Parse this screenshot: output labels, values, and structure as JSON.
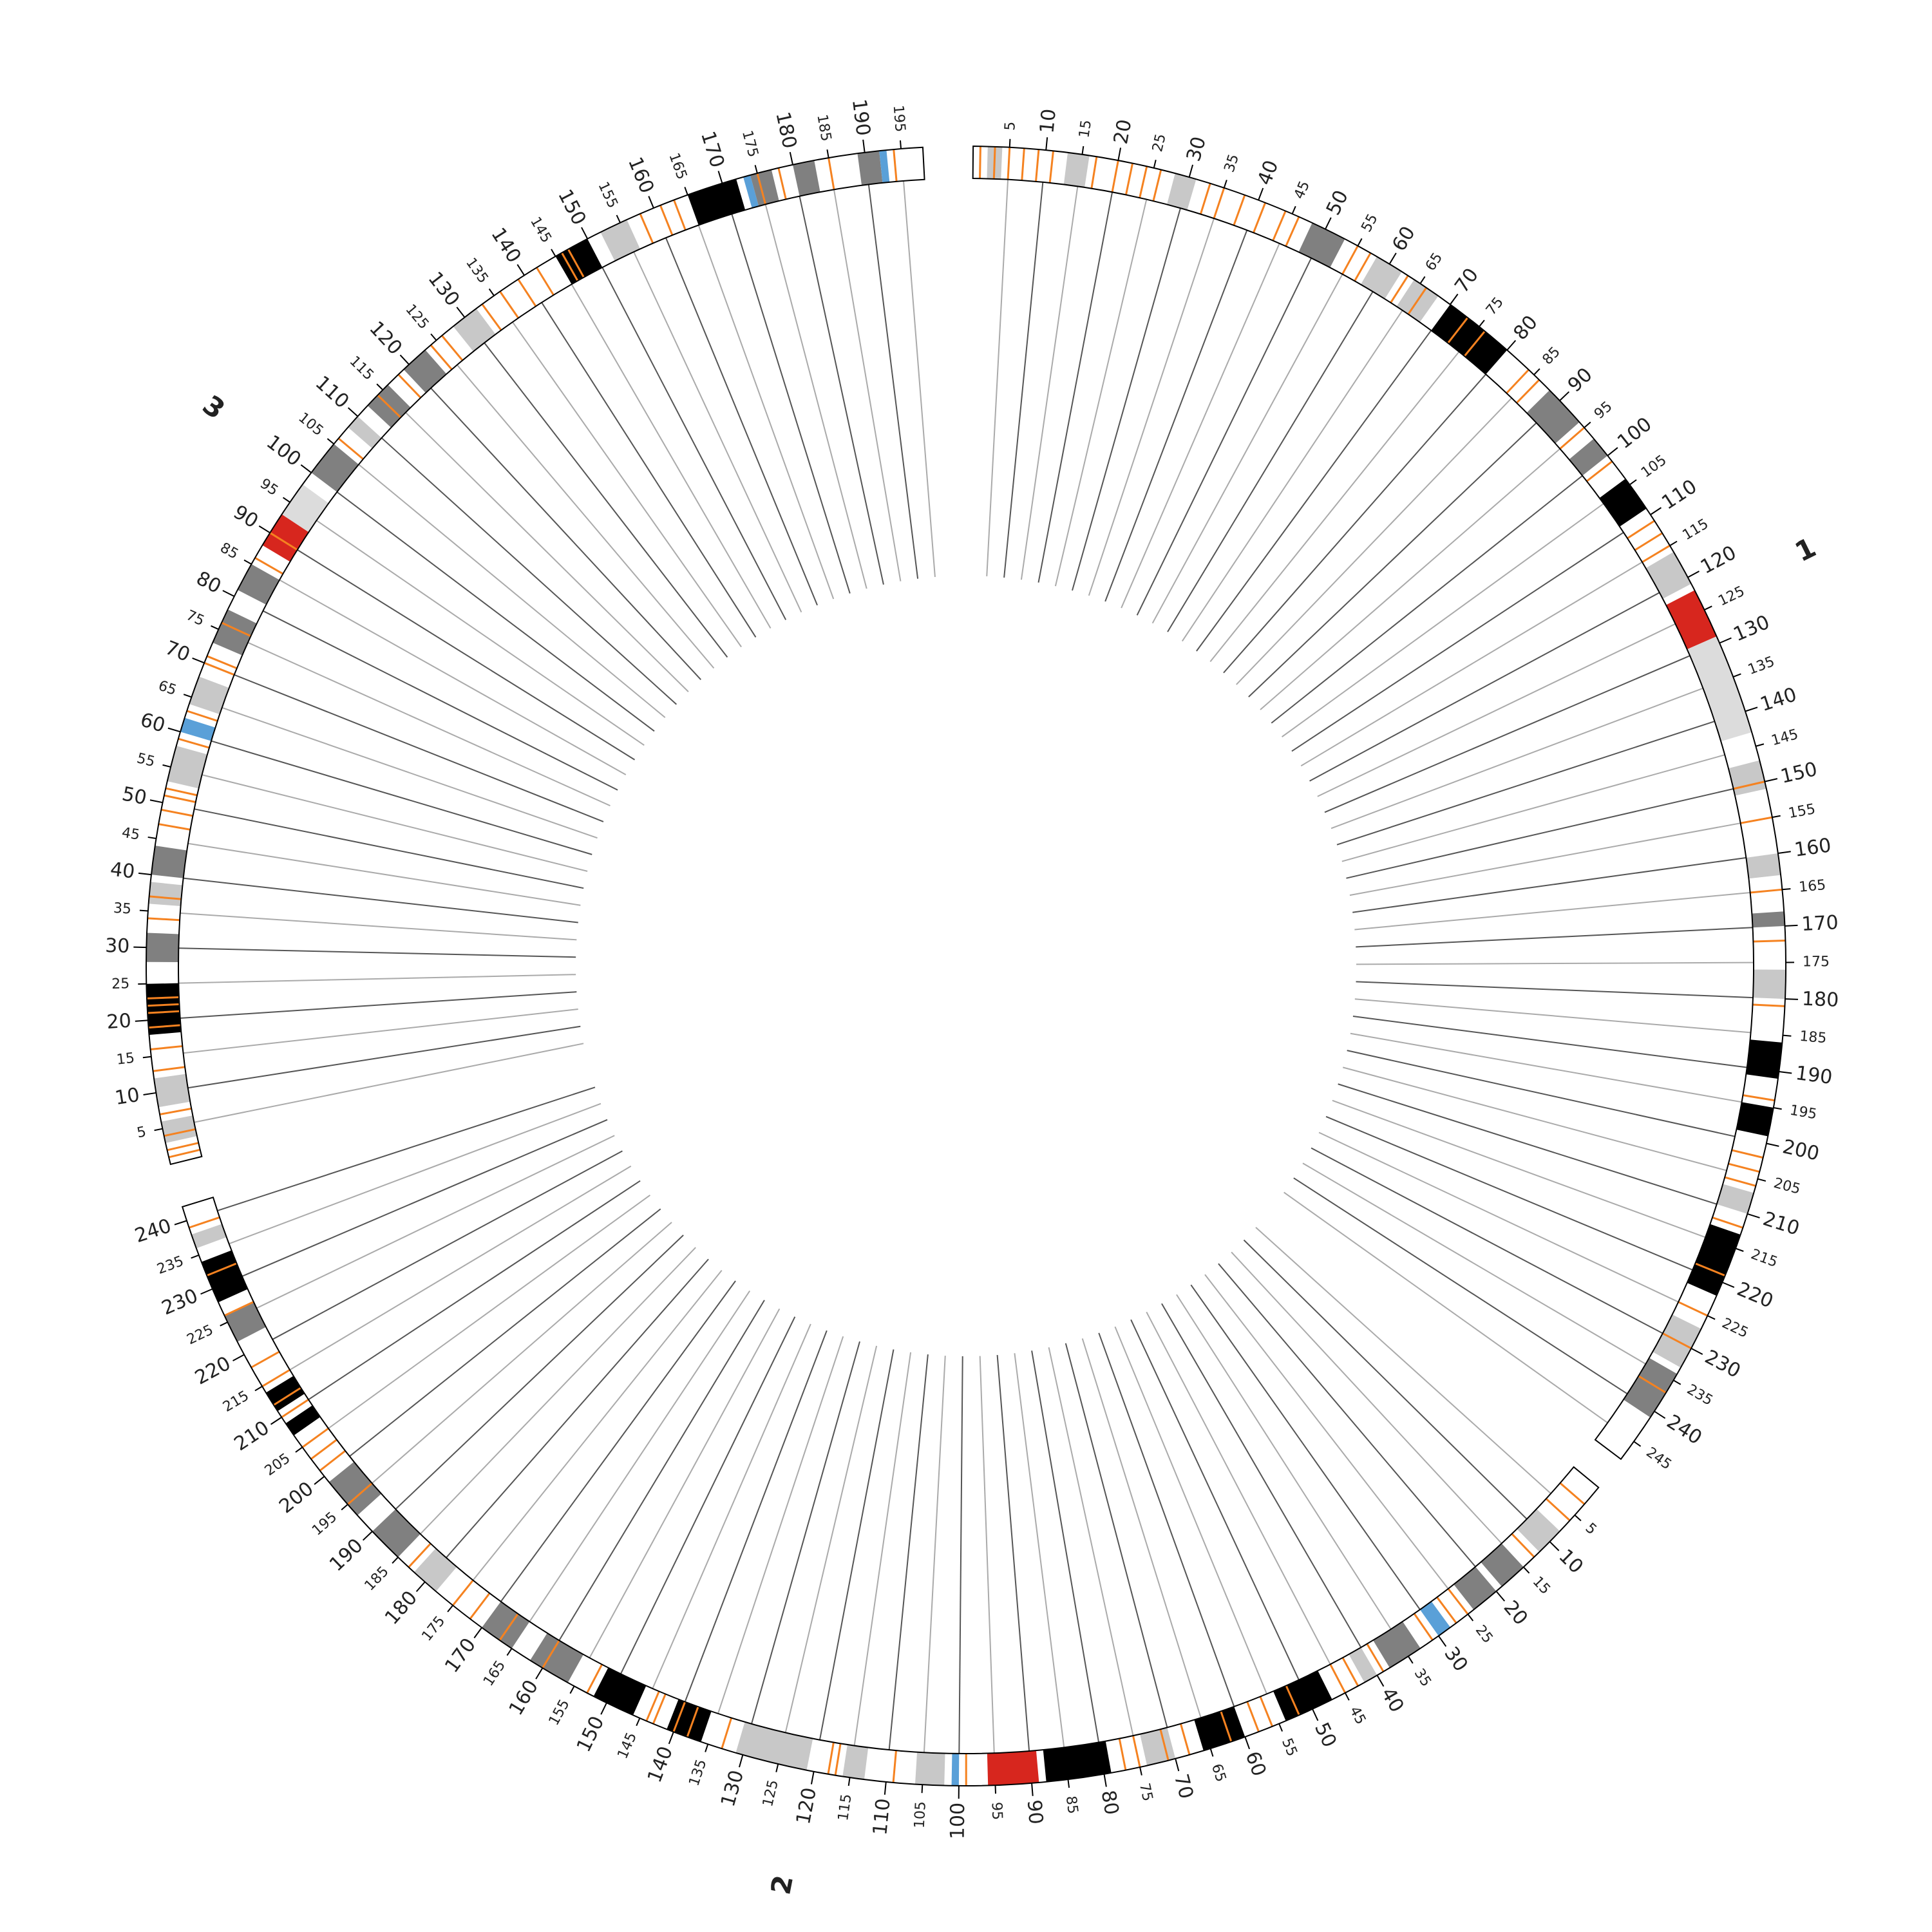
{
  "chart_data": {
    "type": "circos",
    "feature_color": "#f58220",
    "grid": true,
    "ideograms": [
      {
        "name": "1",
        "length": 248,
        "ticks": [
          5,
          10,
          15,
          20,
          25,
          30,
          35,
          40,
          45,
          50,
          55,
          60,
          65,
          70,
          75,
          80,
          85,
          90,
          95,
          100,
          105,
          110,
          115,
          120,
          125,
          130,
          135,
          140,
          145,
          150,
          155,
          160,
          165,
          170,
          175,
          180,
          185,
          190,
          195,
          200,
          205,
          210,
          215,
          220,
          225,
          230,
          235,
          240,
          245
        ],
        "bands": [
          {
            "start": 2,
            "end": 4,
            "color": "#c8c8c8"
          },
          {
            "start": 13,
            "end": 16,
            "color": "#c8c8c8"
          },
          {
            "start": 28,
            "end": 31,
            "color": "#c8c8c8"
          },
          {
            "start": 48,
            "end": 53,
            "color": "#808080"
          },
          {
            "start": 58,
            "end": 62,
            "color": "#c8c8c8"
          },
          {
            "start": 64,
            "end": 68,
            "color": "#c8c8c8"
          },
          {
            "start": 70,
            "end": 80,
            "color": "#000000"
          },
          {
            "start": 88,
            "end": 94,
            "color": "#808080"
          },
          {
            "start": 97,
            "end": 100,
            "color": "#808080"
          },
          {
            "start": 104,
            "end": 109,
            "color": "#000000"
          },
          {
            "start": 116,
            "end": 121,
            "color": "#c8c8c8"
          },
          {
            "start": 122,
            "end": 129,
            "color": "#d7261e"
          },
          {
            "start": 129,
            "end": 143,
            "color": "#dcdcdc"
          },
          {
            "start": 147,
            "end": 151,
            "color": "#c8c8c8"
          },
          {
            "start": 160,
            "end": 163,
            "color": "#c8c8c8"
          },
          {
            "start": 168,
            "end": 170,
            "color": "#808080"
          },
          {
            "start": 176,
            "end": 180,
            "color": "#c8c8c8"
          },
          {
            "start": 186,
            "end": 191,
            "color": "#000000"
          },
          {
            "start": 195,
            "end": 199,
            "color": "#000000"
          },
          {
            "start": 207,
            "end": 210,
            "color": "#c8c8c8"
          },
          {
            "start": 213,
            "end": 222,
            "color": "#000000"
          },
          {
            "start": 227,
            "end": 233,
            "color": "#c8c8c8"
          },
          {
            "start": 234,
            "end": 241,
            "color": "#808080"
          }
        ],
        "features": [
          1,
          3,
          5,
          7,
          9,
          11,
          17,
          20,
          22,
          24,
          26,
          33,
          35,
          38,
          41,
          44,
          46,
          55,
          57,
          63,
          66,
          73,
          76,
          84,
          86,
          95,
          101,
          111,
          113,
          115,
          150,
          155,
          165,
          172,
          181,
          194,
          202,
          204,
          206,
          212,
          219,
          225,
          230,
          237
        ]
      },
      {
        "name": "2",
        "length": 242,
        "ticks": [
          5,
          10,
          15,
          20,
          25,
          30,
          35,
          40,
          45,
          50,
          55,
          60,
          65,
          70,
          75,
          80,
          85,
          90,
          95,
          100,
          105,
          110,
          115,
          120,
          125,
          130,
          135,
          140,
          145,
          150,
          155,
          160,
          165,
          170,
          175,
          180,
          185,
          190,
          195,
          200,
          205,
          210,
          215,
          220,
          225,
          230,
          235,
          240
        ],
        "bands": [
          {
            "start": 8,
            "end": 12,
            "color": "#c8c8c8"
          },
          {
            "start": 15,
            "end": 19,
            "color": "#808080"
          },
          {
            "start": 20,
            "end": 24,
            "color": "#808080"
          },
          {
            "start": 28,
            "end": 30,
            "color": "#5aa0d8"
          },
          {
            "start": 33,
            "end": 38,
            "color": "#808080"
          },
          {
            "start": 40,
            "end": 42,
            "color": "#c8c8c8"
          },
          {
            "start": 47,
            "end": 54,
            "color": "#000000"
          },
          {
            "start": 60,
            "end": 66,
            "color": "#000000"
          },
          {
            "start": 70,
            "end": 74,
            "color": "#c8c8c8"
          },
          {
            "start": 79,
            "end": 88,
            "color": "#000000"
          },
          {
            "start": 89,
            "end": 96,
            "color": "#d7261e"
          },
          {
            "start": 100,
            "end": 101,
            "color": "#5aa0d8"
          },
          {
            "start": 102,
            "end": 106,
            "color": "#c8c8c8"
          },
          {
            "start": 113,
            "end": 116,
            "color": "#c8c8c8"
          },
          {
            "start": 121,
            "end": 131,
            "color": "#c8c8c8"
          },
          {
            "start": 136,
            "end": 141,
            "color": "#000000"
          },
          {
            "start": 146,
            "end": 152,
            "color": "#000000"
          },
          {
            "start": 156,
            "end": 162,
            "color": "#808080"
          },
          {
            "start": 165,
            "end": 170,
            "color": "#808080"
          },
          {
            "start": 178,
            "end": 182,
            "color": "#c8c8c8"
          },
          {
            "start": 185,
            "end": 190,
            "color": "#808080"
          },
          {
            "start": 193,
            "end": 199,
            "color": "#808080"
          },
          {
            "start": 207,
            "end": 209,
            "color": "#000000"
          },
          {
            "start": 211,
            "end": 214,
            "color": "#000000"
          },
          {
            "start": 222,
            "end": 226,
            "color": "#808080"
          },
          {
            "start": 228,
            "end": 234,
            "color": "#000000"
          },
          {
            "start": 236,
            "end": 238,
            "color": "#c8c8c8"
          }
        ],
        "features": [
          3,
          6,
          13,
          25,
          27,
          31,
          39,
          43,
          45,
          52,
          56,
          58,
          62,
          68,
          71,
          75,
          77,
          99,
          109,
          117,
          118,
          133,
          138,
          140,
          143,
          144,
          153,
          160,
          167,
          172,
          175,
          183,
          195,
          201,
          203,
          205,
          210,
          212,
          215,
          218,
          226,
          232,
          239
        ]
      },
      {
        "name": "3",
        "length": 198,
        "ticks": [
          5,
          10,
          15,
          20,
          25,
          30,
          35,
          40,
          45,
          50,
          55,
          60,
          65,
          70,
          75,
          80,
          85,
          90,
          95,
          100,
          105,
          110,
          115,
          120,
          125,
          130,
          135,
          140,
          145,
          150,
          155,
          160,
          165,
          170,
          175,
          180,
          185,
          190,
          195
        ],
        "bands": [
          {
            "start": 3,
            "end": 6,
            "color": "#c8c8c8"
          },
          {
            "start": 8,
            "end": 12,
            "color": "#c8c8c8"
          },
          {
            "start": 18,
            "end": 25,
            "color": "#000000"
          },
          {
            "start": 28,
            "end": 32,
            "color": "#808080"
          },
          {
            "start": 36,
            "end": 39,
            "color": "#c8c8c8"
          },
          {
            "start": 40,
            "end": 44,
            "color": "#808080"
          },
          {
            "start": 53,
            "end": 58,
            "color": "#c8c8c8"
          },
          {
            "start": 60,
            "end": 62,
            "color": "#5aa0d8"
          },
          {
            "start": 64,
            "end": 68,
            "color": "#c8c8c8"
          },
          {
            "start": 73,
            "end": 78,
            "color": "#808080"
          },
          {
            "start": 81,
            "end": 85,
            "color": "#808080"
          },
          {
            "start": 88,
            "end": 93,
            "color": "#d7261e"
          },
          {
            "start": 93,
            "end": 98,
            "color": "#dcdcdc"
          },
          {
            "start": 100,
            "end": 105,
            "color": "#808080"
          },
          {
            "start": 108,
            "end": 110,
            "color": "#c8c8c8"
          },
          {
            "start": 112,
            "end": 116,
            "color": "#808080"
          },
          {
            "start": 119,
            "end": 123,
            "color": "#808080"
          },
          {
            "start": 128,
            "end": 132,
            "color": "#c8c8c8"
          },
          {
            "start": 145,
            "end": 150,
            "color": "#000000"
          },
          {
            "start": 152,
            "end": 156,
            "color": "#c8c8c8"
          },
          {
            "start": 165,
            "end": 172,
            "color": "#000000"
          },
          {
            "start": 173,
            "end": 174,
            "color": "#5aa0d8"
          },
          {
            "start": 174,
            "end": 177,
            "color": "#808080"
          },
          {
            "start": 180,
            "end": 183,
            "color": "#808080"
          },
          {
            "start": 189,
            "end": 192,
            "color": "#808080"
          },
          {
            "start": 192,
            "end": 193,
            "color": "#5aa0d8"
          }
        ],
        "features": [
          1,
          2,
          4,
          7,
          13,
          16,
          19,
          21,
          22,
          23,
          34,
          37,
          47,
          49,
          51,
          52,
          59,
          63,
          70,
          71,
          76,
          86,
          90,
          106,
          114,
          118,
          124,
          126,
          133,
          136,
          139,
          142,
          146,
          147,
          158,
          161,
          163,
          175,
          178,
          185,
          194
        ]
      }
    ]
  }
}
